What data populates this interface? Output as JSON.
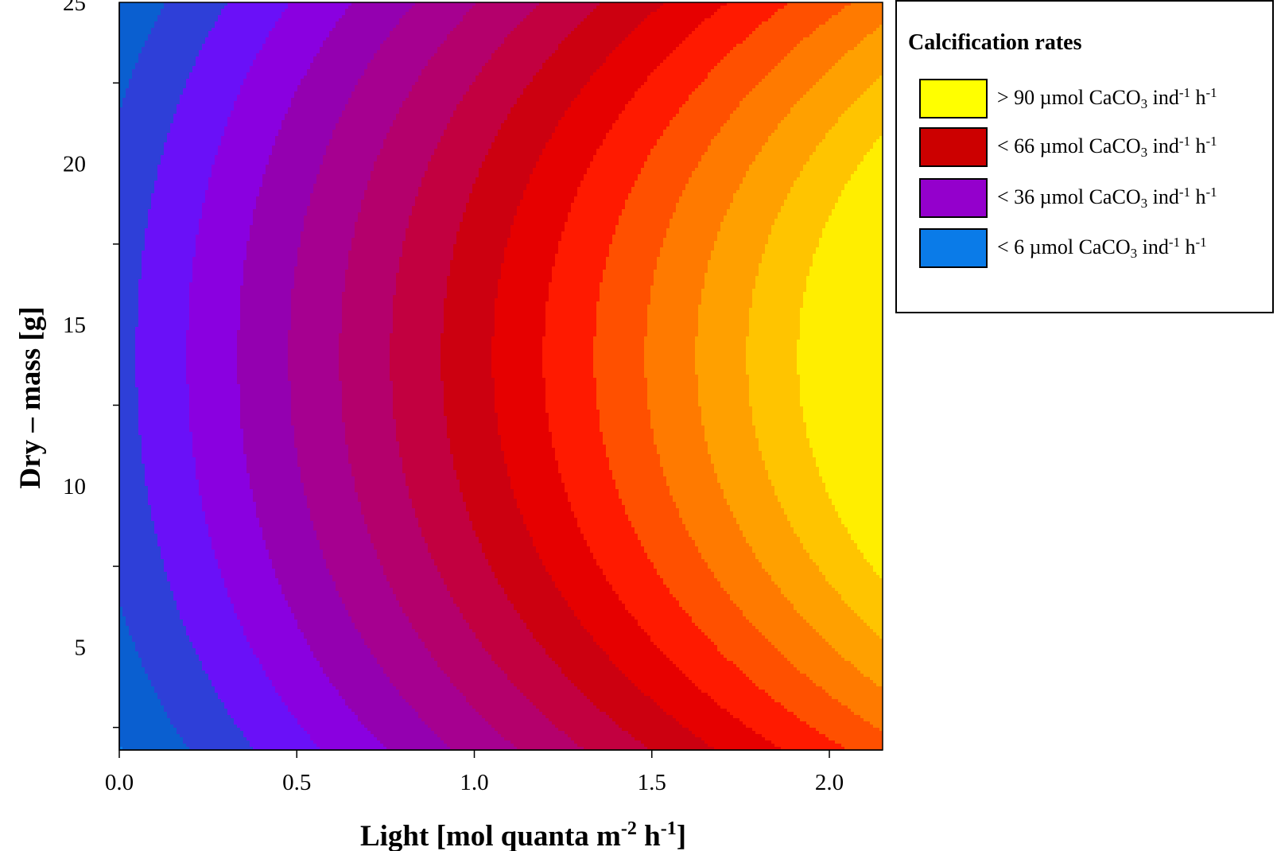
{
  "chart_data": {
    "type": "contour",
    "xlabel_base": "Light [mol quanta m",
    "xlabel_exp1": "-2",
    "xlabel_mid": " h",
    "xlabel_exp2": "-1",
    "xlabel_end": "]",
    "ylabel": "Dry – mass [g]",
    "xlim": [
      0.0,
      2.15
    ],
    "ylim": [
      1.8,
      25
    ],
    "x_ticks": [
      0.0,
      0.5,
      1.0,
      1.5,
      2.0
    ],
    "x_tick_labels": [
      "0.0",
      "0.5",
      "1.0",
      "1.5",
      "2.0"
    ],
    "y_ticks": [
      5,
      10,
      15,
      20,
      25
    ],
    "y_tick_labels": [
      "5",
      "10",
      "15",
      "20",
      "25"
    ],
    "z_levels": [
      0,
      6,
      12,
      18,
      24,
      30,
      36,
      42,
      48,
      54,
      60,
      66,
      72,
      78,
      84,
      90
    ],
    "level_colors": [
      "#0a7be8",
      "#0a5fd0",
      "#2e3fd8",
      "#6a10f8",
      "#8a00e0",
      "#9400b0",
      "#a60090",
      "#b4006c",
      "#c20040",
      "#cc0010",
      "#e60000",
      "#ff1a00",
      "#ff5000",
      "#ff7a00",
      "#ffa000",
      "#ffc400",
      "#ffee00"
    ],
    "grid": false,
    "legend_position": "top-right"
  },
  "legend": {
    "title": "Calcification rates",
    "items": [
      {
        "prefix": "> 90 µmol CaCO",
        "sub": "3",
        "mid": " ind",
        "sup1": "-1",
        "mid2": " h",
        "sup2": "-1",
        "color": "#ffff00"
      },
      {
        "prefix": "< 66 µmol CaCO",
        "sub": "3",
        "mid": " ind",
        "sup1": "-1",
        "mid2": " h",
        "sup2": "-1",
        "color": "#cc0000"
      },
      {
        "prefix": "< 36 µmol CaCO",
        "sub": "3",
        "mid": " ind",
        "sup1": "-1",
        "mid2": " h",
        "sup2": "-1",
        "color": "#9400cc"
      },
      {
        "prefix": "< 6 µmol CaCO",
        "sub": "3",
        "mid": " ind",
        "sup1": "-1",
        "mid2": " h",
        "sup2": "-1",
        "color": "#0a7be8"
      }
    ]
  }
}
